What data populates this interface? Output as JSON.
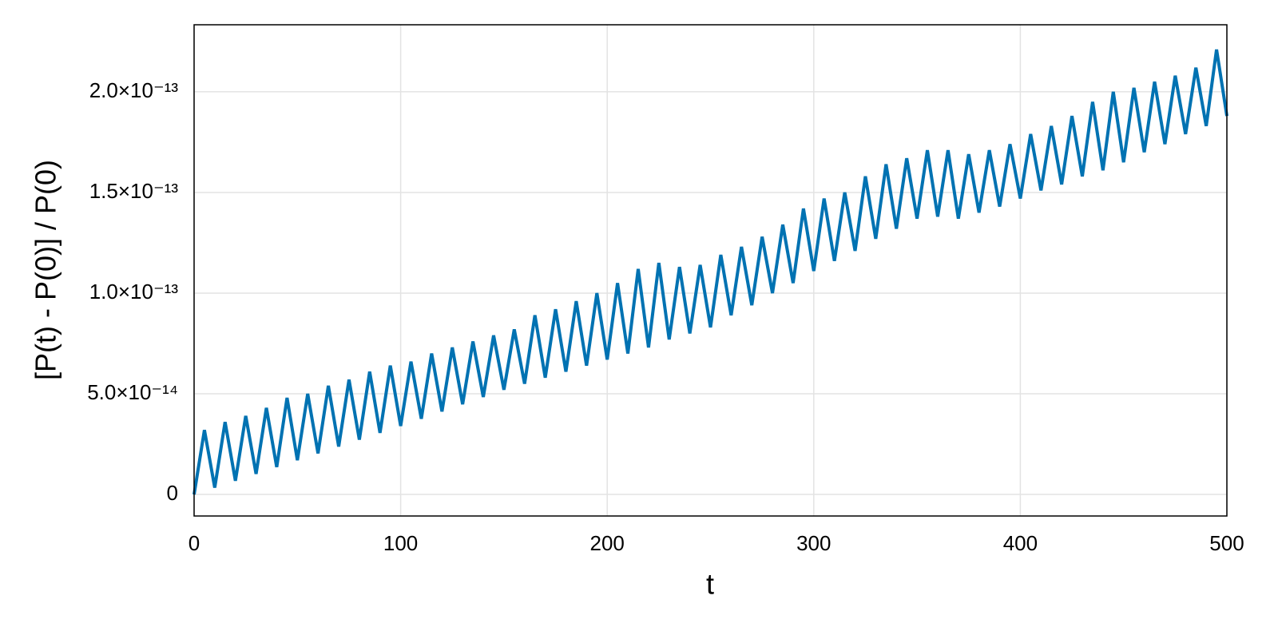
{
  "chart_data": {
    "type": "line",
    "x_label": "t",
    "y_label": "[P(t) - P(0)] / P(0)",
    "color": "#0072b2",
    "grid": true,
    "xlim": [
      0,
      500
    ],
    "ylim": [
      -1.07e-14,
      2.333e-13
    ],
    "xticks": [
      0,
      100,
      200,
      300,
      400,
      500
    ],
    "yticks": [
      0,
      {
        "value": 5e-14,
        "label": "5.0×10⁻¹⁴"
      },
      {
        "value": 1e-13,
        "label": "1.0×10⁻¹³"
      },
      {
        "value": 1.5e-13,
        "label": "1.5×10⁻¹³"
      },
      {
        "value": 2e-13,
        "label": "2.0×10⁻¹³"
      }
    ],
    "x": [
      0,
      5,
      10,
      15,
      20,
      25,
      30,
      35,
      40,
      45,
      50,
      55,
      60,
      65,
      70,
      75,
      80,
      85,
      90,
      95,
      100,
      105,
      110,
      115,
      120,
      125,
      130,
      135,
      140,
      145,
      150,
      155,
      160,
      165,
      170,
      175,
      180,
      185,
      190,
      195,
      200,
      205,
      210,
      215,
      220,
      225,
      230,
      235,
      240,
      245,
      250,
      255,
      260,
      265,
      270,
      275,
      280,
      285,
      290,
      295,
      300,
      305,
      310,
      315,
      320,
      325,
      330,
      335,
      340,
      345,
      350,
      355,
      360,
      365,
      370,
      375,
      380,
      385,
      390,
      395,
      400,
      405,
      410,
      415,
      420,
      425,
      430,
      435,
      440,
      445,
      450,
      455,
      460,
      465,
      470,
      475,
      480,
      485,
      490,
      495,
      500
    ],
    "values": [
      0,
      3.2e-14,
      3.4e-15,
      3.6e-14,
      6.8e-15,
      3.9e-14,
      1.02e-14,
      4.3e-14,
      1.36e-14,
      4.8e-14,
      1.7e-14,
      5e-14,
      2.04e-14,
      5.4e-14,
      2.38e-14,
      5.7e-14,
      2.72e-14,
      6.1e-14,
      3.06e-14,
      6.4e-14,
      3.4e-14,
      6.6e-14,
      3.76e-14,
      7e-14,
      4.12e-14,
      7.3e-14,
      4.48e-14,
      7.6e-14,
      4.84e-14,
      7.9e-14,
      5.2e-14,
      8.2e-14,
      5.5e-14,
      8.9e-14,
      5.8e-14,
      9.2e-14,
      6.1e-14,
      9.6e-14,
      6.4e-14,
      1e-13,
      6.7e-14,
      1.05e-13,
      7e-14,
      1.12e-13,
      7.3e-14,
      1.15e-13,
      7.7e-14,
      1.13e-13,
      8e-14,
      1.14e-13,
      8.3e-14,
      1.19e-13,
      8.9e-14,
      1.23e-13,
      9.4e-14,
      1.28e-13,
      1e-13,
      1.34e-13,
      1.05e-13,
      1.42e-13,
      1.11e-13,
      1.47e-13,
      1.16e-13,
      1.5e-13,
      1.21e-13,
      1.58e-13,
      1.27e-13,
      1.64e-13,
      1.32e-13,
      1.67e-13,
      1.37e-13,
      1.71e-13,
      1.38e-13,
      1.71e-13,
      1.37e-13,
      1.69e-13,
      1.4e-13,
      1.71e-13,
      1.43e-13,
      1.74e-13,
      1.47e-13,
      1.79e-13,
      1.51e-13,
      1.83e-13,
      1.54e-13,
      1.88e-13,
      1.58e-13,
      1.95e-13,
      1.61e-13,
      2e-13,
      1.65e-13,
      2.02e-13,
      1.7e-13,
      2.05e-13,
      1.74e-13,
      2.08e-13,
      1.79e-13,
      2.12e-13,
      1.83e-13,
      2.21e-13,
      1.88e-13
    ]
  }
}
